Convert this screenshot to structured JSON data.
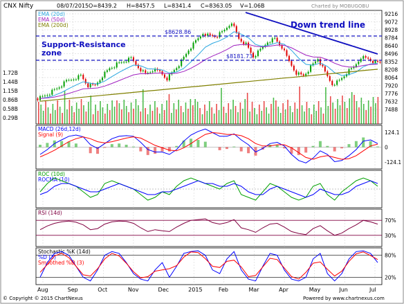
{
  "header": {
    "symbol": "CNX Nifty",
    "date": "08/07/2015",
    "open": "O=8439.2",
    "high": "H=8457.5",
    "low": "L=8341.4",
    "close": "C=8363.05",
    "volume": "V=1.06B",
    "charted_by": "Charted by MOBUGOBU"
  },
  "footer": {
    "copyright_left": "© Copyright © 2015 ChartNexus",
    "copyright_right": "Powered by www.chartnexus.com"
  },
  "annotations": {
    "down_trend": "Down trend line",
    "support_resistance_1": "Support-Resistance",
    "support_resistance_2": "zone",
    "level_high": "$8628.86",
    "level_low": "$8181.73"
  },
  "colors": {
    "up": "#00a000",
    "down": "#e00000",
    "ema20": "#2aa7e0",
    "ema50": "#a020c0",
    "ema200": "#808000",
    "annot": "#1010c0",
    "macd": "#0000ff",
    "signal": "#ff0000",
    "roc": "#00a000",
    "rocma": "#0000ff",
    "rsi": "#800040",
    "stochK": "#0000ff",
    "stochD": "#ff0000"
  },
  "chart_data": [
    {
      "type": "candlestick",
      "panel": "price",
      "legend": [
        "EMA (20d)",
        "EMA (50d)",
        "EMA (200d)"
      ],
      "ylim": [
        7300,
        9300
      ],
      "y_ticks": [
        "9216",
        "9072",
        "8928",
        "8784",
        "8640",
        "8496",
        "8352",
        "8208",
        "8064",
        "7920",
        "7776",
        "7632",
        "7488"
      ],
      "volume_ticks": [
        "1.72B",
        "1.44B",
        "1.15B",
        "0.86B",
        "0.58B",
        "0.29B"
      ],
      "x_labels": [
        "Aug",
        "Sep",
        "Oct",
        "Nov",
        "Dec",
        "2015",
        "Feb",
        "Mar",
        "Apr",
        "May",
        "Jun",
        "Jul"
      ],
      "close": [
        7750,
        7800,
        7870,
        7950,
        8050,
        8100,
        8150,
        7970,
        7980,
        8150,
        8280,
        8350,
        8400,
        8450,
        8300,
        8180,
        8250,
        8220,
        8100,
        8250,
        8400,
        8600,
        8750,
        8900,
        8850,
        8850,
        8950,
        9100,
        8800,
        8700,
        8480,
        8600,
        8750,
        8800,
        8650,
        8400,
        8200,
        8150,
        8300,
        8450,
        8200,
        8000,
        8060,
        8200,
        8300,
        8480,
        8450,
        8380
      ],
      "levels": [
        8628.86,
        8181.73
      ]
    },
    {
      "type": "line",
      "panel": "macd",
      "title": "MACD (26d,12d)",
      "legend": [
        "MACD (26d,12d)",
        "Signal (9)"
      ],
      "y_ticks": [
        "124.1",
        "0",
        "-124.1"
      ],
      "ylim": [
        -160,
        160
      ],
      "macd": [
        -60,
        -20,
        30,
        60,
        90,
        100,
        85,
        20,
        -10,
        30,
        70,
        90,
        95,
        90,
        40,
        -20,
        -40,
        -40,
        -60,
        -20,
        50,
        100,
        130,
        150,
        120,
        90,
        90,
        110,
        60,
        20,
        -40,
        -10,
        30,
        40,
        10,
        -60,
        -110,
        -130,
        -90,
        -30,
        -60,
        -120,
        -110,
        -70,
        -20,
        50,
        60,
        30
      ],
      "signal": [
        -80,
        -55,
        -25,
        10,
        45,
        70,
        85,
        70,
        45,
        35,
        45,
        60,
        75,
        85,
        75,
        45,
        15,
        -5,
        -25,
        -30,
        -5,
        30,
        70,
        105,
        120,
        115,
        105,
        105,
        95,
        70,
        30,
        10,
        10,
        20,
        20,
        -5,
        -45,
        -85,
        -100,
        -80,
        -70,
        -85,
        -100,
        -95,
        -70,
        -30,
        10,
        25
      ]
    },
    {
      "type": "line",
      "panel": "roc",
      "legend": [
        "ROC (10d)",
        "ROCMA (10)"
      ],
      "ylim": [
        -6,
        6
      ],
      "roc": [
        -1,
        2,
        4,
        3,
        2,
        1,
        -1,
        -3,
        -2,
        2,
        3,
        2,
        1,
        0,
        -2,
        -4,
        -3,
        -1,
        -2,
        1,
        3,
        4,
        3,
        2,
        1,
        0,
        2,
        3,
        -2,
        -3,
        -4,
        -1,
        2,
        1,
        -1,
        -3,
        -4,
        -3,
        1,
        2,
        -2,
        -4,
        -1,
        1,
        3,
        4,
        3,
        1
      ],
      "rocma": [
        -2,
        -1,
        1,
        2,
        2,
        1,
        0,
        -1,
        -1,
        0,
        1,
        2,
        1,
        0,
        -1,
        -2,
        -2,
        -1,
        -1,
        0,
        1,
        2,
        3,
        2,
        2,
        1,
        1,
        2,
        1,
        -1,
        -2,
        -2,
        0,
        1,
        0,
        -1,
        -2,
        -3,
        -2,
        0,
        -1,
        -2,
        -2,
        -1,
        1,
        2,
        3,
        2
      ]
    },
    {
      "type": "line",
      "panel": "rsi",
      "title": "RSI (14d)",
      "y_ticks": [
        "70%",
        "30%"
      ],
      "ylim": [
        0,
        100
      ],
      "rsi": [
        45,
        55,
        62,
        66,
        68,
        65,
        58,
        45,
        48,
        60,
        66,
        68,
        67,
        62,
        50,
        40,
        45,
        42,
        40,
        52,
        62,
        70,
        72,
        74,
        64,
        60,
        64,
        72,
        50,
        45,
        38,
        50,
        60,
        62,
        52,
        40,
        35,
        32,
        48,
        56,
        42,
        30,
        36,
        48,
        58,
        70,
        66,
        60
      ]
    },
    {
      "type": "line",
      "panel": "stochastic",
      "legend": [
        "Stochastic %K (14d)",
        "%D (3)",
        "Smoothed %D (3)"
      ],
      "y_ticks": [
        "80%",
        "20%"
      ],
      "ylim": [
        0,
        100
      ],
      "stochK": [
        20,
        60,
        85,
        90,
        80,
        50,
        20,
        10,
        40,
        80,
        90,
        85,
        60,
        30,
        15,
        10,
        40,
        60,
        20,
        50,
        85,
        90,
        92,
        80,
        40,
        30,
        70,
        90,
        40,
        15,
        10,
        50,
        85,
        80,
        40,
        15,
        10,
        20,
        70,
        85,
        30,
        10,
        30,
        70,
        90,
        92,
        85,
        60
      ]
    }
  ]
}
